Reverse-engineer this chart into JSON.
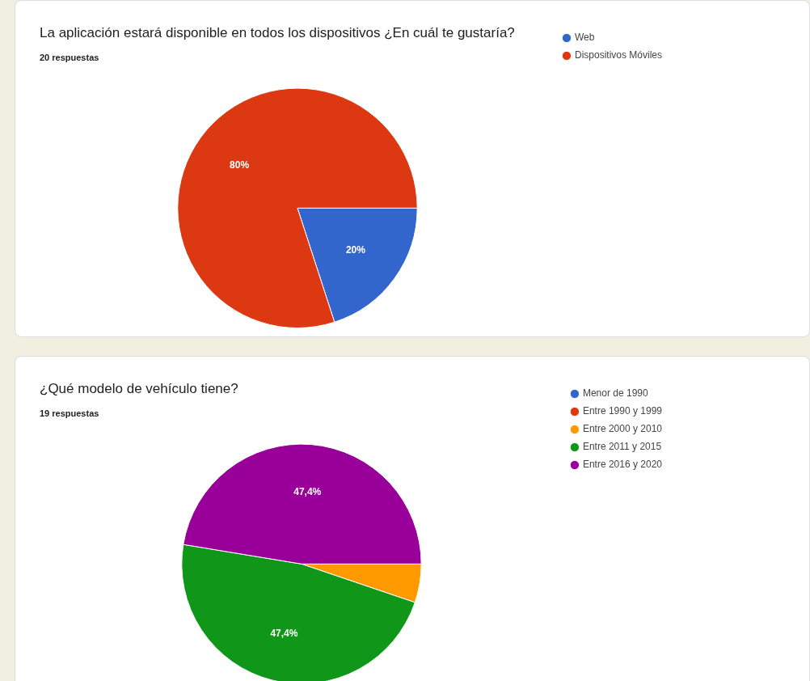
{
  "chart_data": [
    {
      "type": "pie",
      "title": "La aplicación estará disponible en todos los dispositivos ¿En cuál te gustaría?",
      "subtitle": "20 respuestas",
      "categories": [
        "Web",
        "Dispositivos Móviles"
      ],
      "values": [
        20,
        80
      ],
      "colors": [
        "#3366cc",
        "#dc3912"
      ],
      "value_labels": [
        "20%",
        "80%"
      ],
      "legend": "right"
    },
    {
      "type": "pie",
      "title": "¿Qué modelo de vehículo tiene?",
      "subtitle": "19 respuestas",
      "categories": [
        "Menor de 1990",
        "Entre 1990 y 1999",
        "Entre 2000 y 2010",
        "Entre 2011 y 2015",
        "Entre 2016 y 2020"
      ],
      "values": [
        0,
        0,
        5.2,
        47.4,
        47.4
      ],
      "colors": [
        "#3366cc",
        "#dc3912",
        "#ff9900",
        "#109618",
        "#990099"
      ],
      "value_labels": [
        null,
        null,
        null,
        "47,4%",
        "47,4%"
      ],
      "legend": "right"
    }
  ]
}
